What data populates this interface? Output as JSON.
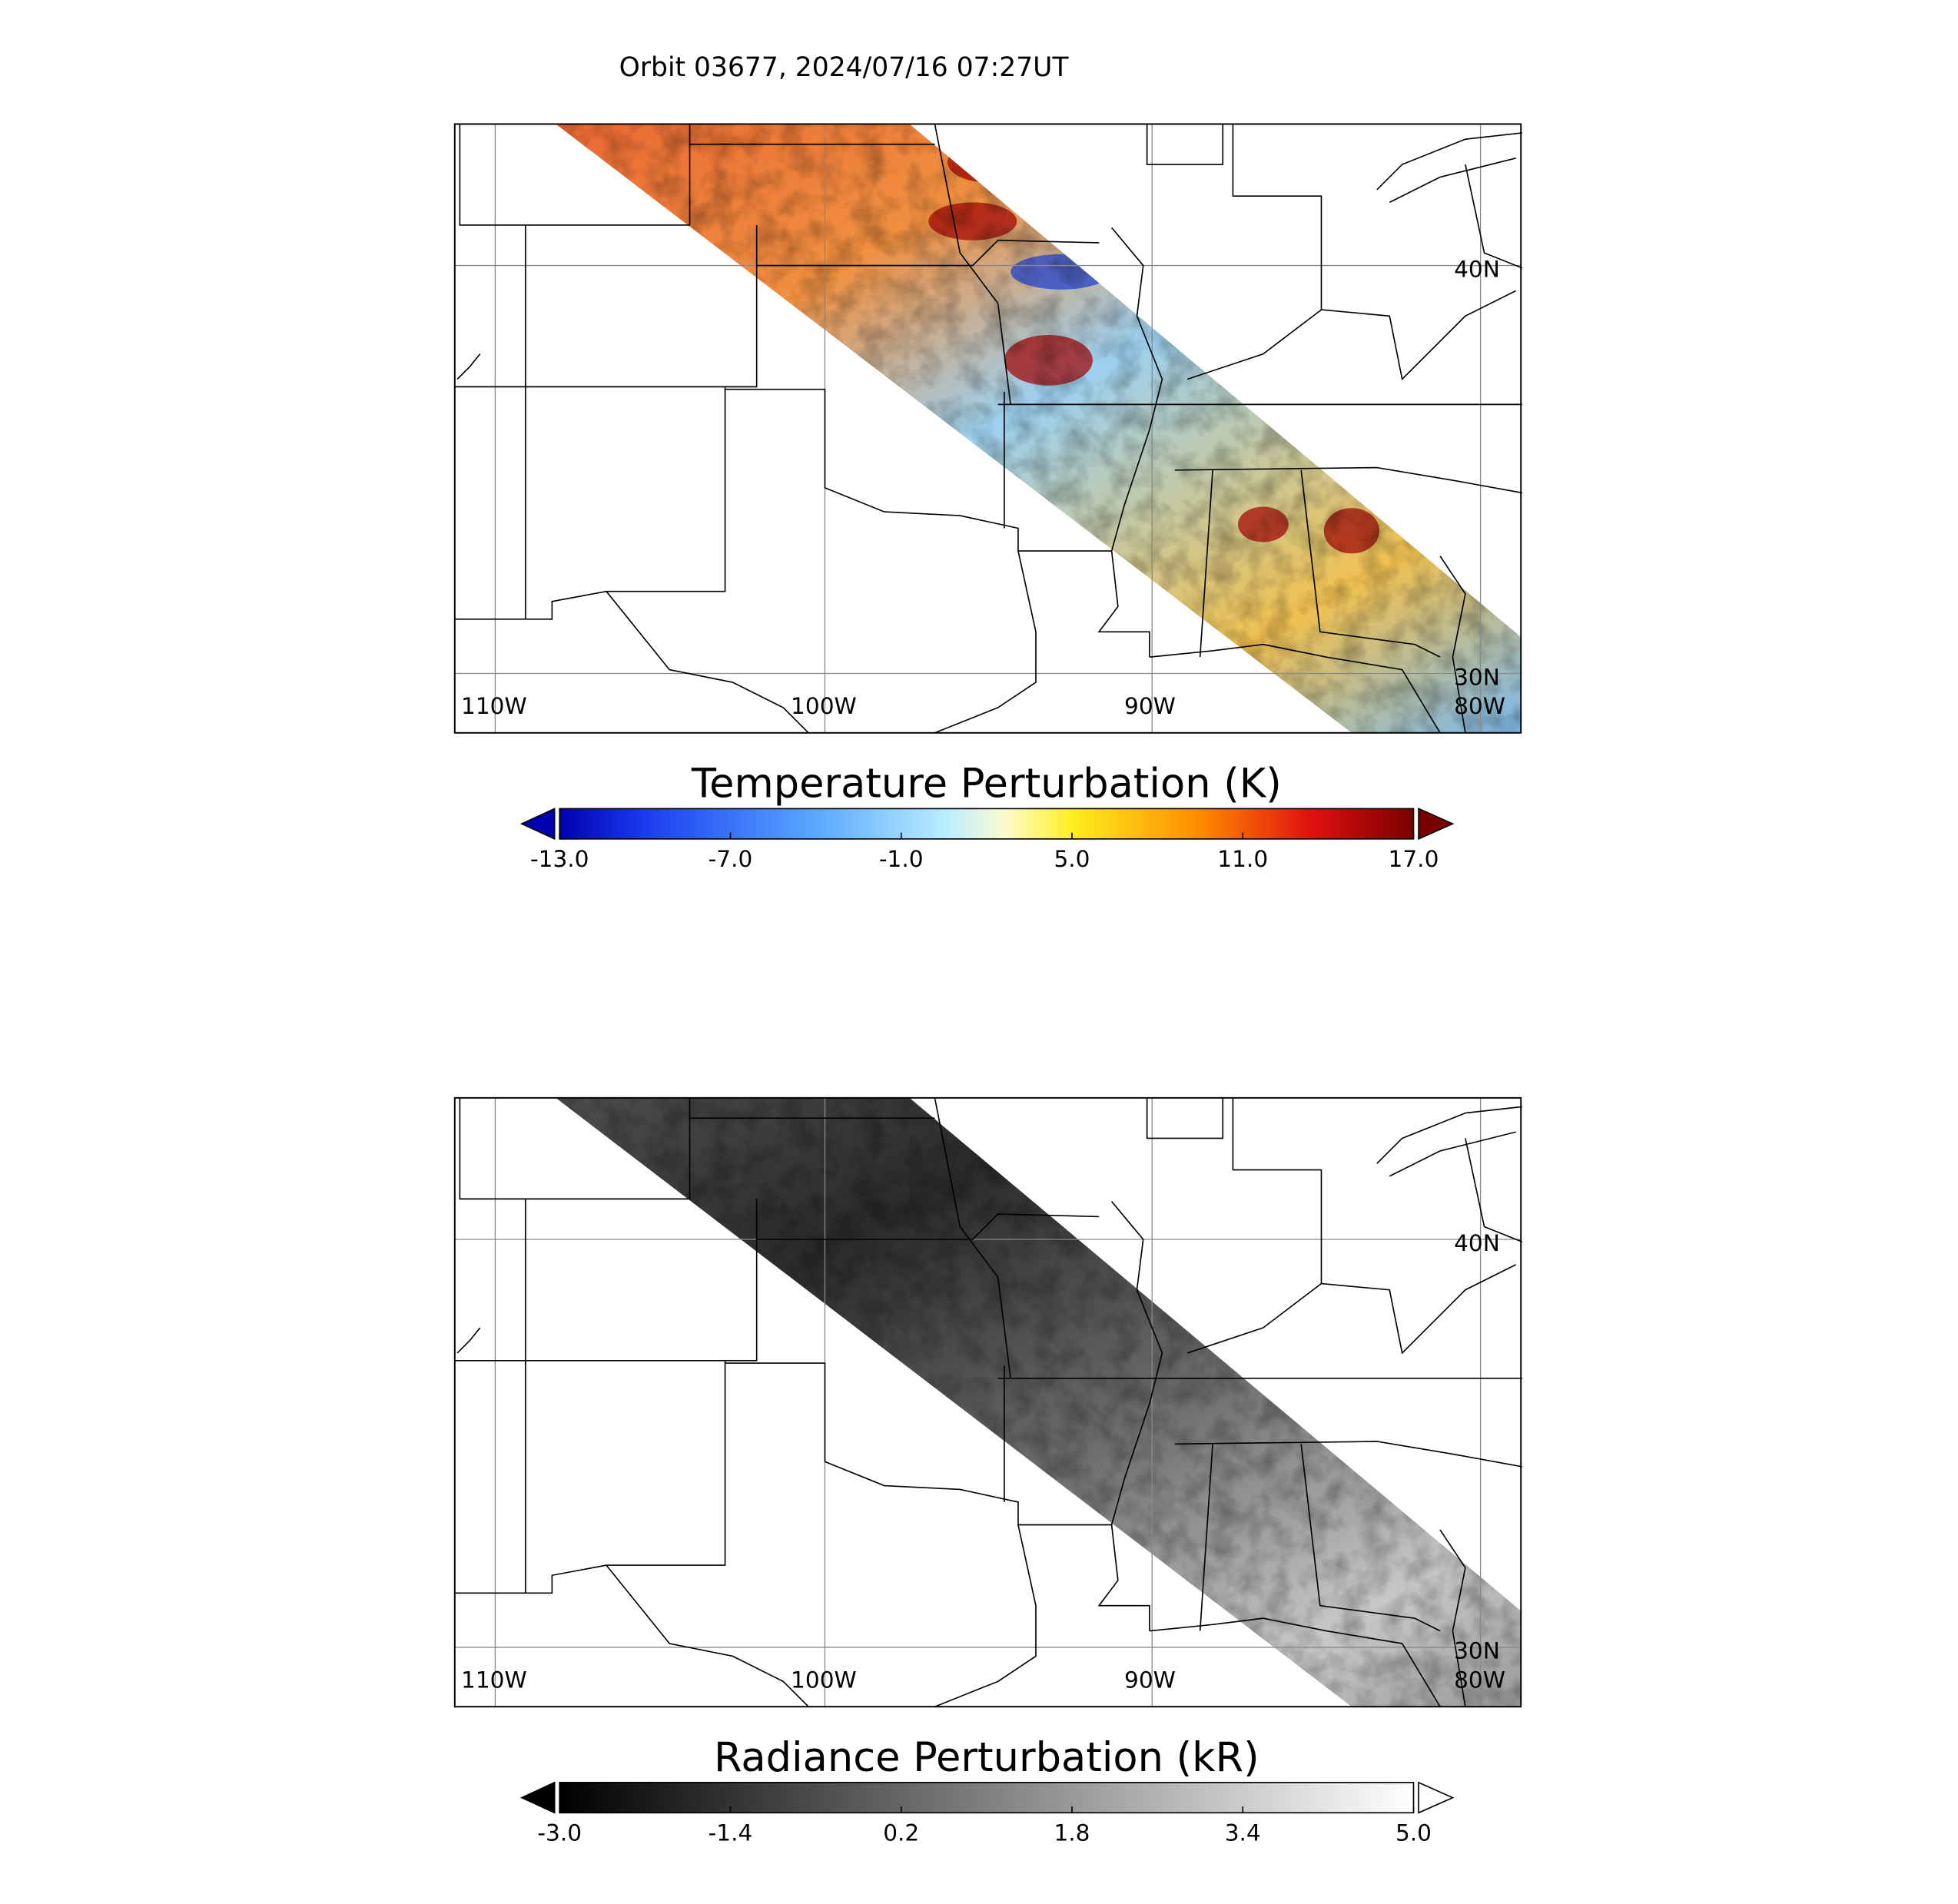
{
  "title": "Orbit 03677, 2024/07/16 07:27UT",
  "panels": [
    {
      "colorbar": {
        "title": "Temperature Perturbation (K)",
        "range": [
          -13,
          17
        ],
        "ticks": [
          {
            "value": -13,
            "label": "-13.0"
          },
          {
            "value": -7,
            "label": "-7.0"
          },
          {
            "value": -1,
            "label": "-1.0"
          },
          {
            "value": 5,
            "label": "5.0"
          },
          {
            "value": 11,
            "label": "11.0"
          },
          {
            "value": 17,
            "label": "17.0"
          }
        ]
      },
      "lon_labels": [
        "110W",
        "100W",
        "90W",
        "80W"
      ],
      "lat_labels": [
        "40N",
        "30N"
      ]
    },
    {
      "colorbar": {
        "title": "Radiance Perturbation (kR)",
        "range": [
          -3,
          5
        ],
        "ticks": [
          {
            "value": -3,
            "label": "-3.0"
          },
          {
            "value": -1.4,
            "label": "-1.4"
          },
          {
            "value": 0.2,
            "label": "0.2"
          },
          {
            "value": 1.8,
            "label": "1.8"
          },
          {
            "value": 3.4,
            "label": "3.4"
          },
          {
            "value": 5,
            "label": "5.0"
          }
        ]
      },
      "lon_labels": [
        "110W",
        "100W",
        "90W",
        "80W"
      ],
      "lat_labels": [
        "40N",
        "30N"
      ]
    }
  ]
}
